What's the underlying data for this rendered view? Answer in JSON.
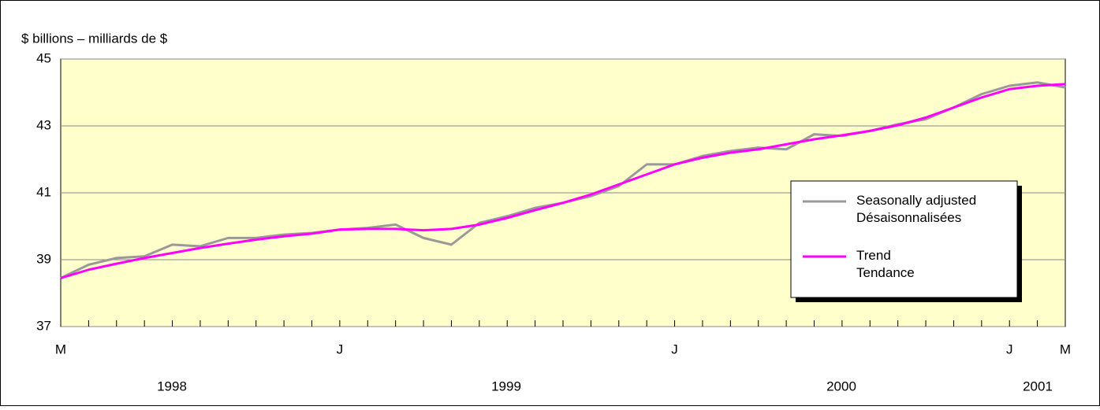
{
  "chart_data": {
    "type": "line",
    "y_label": "$ billions – milliards de $",
    "categories": [
      "M",
      null,
      null,
      null,
      null,
      null,
      null,
      null,
      null,
      null,
      "J",
      null,
      null,
      null,
      null,
      null,
      null,
      null,
      null,
      null,
      null,
      null,
      "J",
      null,
      null,
      null,
      null,
      null,
      null,
      null,
      null,
      null,
      null,
      null,
      "J",
      null,
      "M"
    ],
    "years": [
      "1998",
      "1999",
      "2000",
      "2001"
    ],
    "series": [
      {
        "name": "Seasonally adjusted\nDésaisonnalisées",
        "color": "#999999",
        "values": [
          38.45,
          38.85,
          39.05,
          39.1,
          39.45,
          39.4,
          39.65,
          39.65,
          39.75,
          39.8,
          39.9,
          39.95,
          40.05,
          39.65,
          39.45,
          40.1,
          40.3,
          40.55,
          40.7,
          40.9,
          41.2,
          41.85,
          41.85,
          42.1,
          42.25,
          42.35,
          42.3,
          42.75,
          42.7,
          42.85,
          43.05,
          43.2,
          43.55,
          43.95,
          44.2,
          44.3,
          44.15
        ]
      },
      {
        "name": "Trend\nTendance",
        "color": "#ff00ff",
        "values": [
          38.45,
          38.7,
          38.88,
          39.05,
          39.2,
          39.35,
          39.48,
          39.6,
          39.7,
          39.78,
          39.9,
          39.92,
          39.92,
          39.88,
          39.92,
          40.05,
          40.25,
          40.48,
          40.7,
          40.95,
          41.25,
          41.55,
          41.85,
          42.05,
          42.2,
          42.3,
          42.45,
          42.6,
          42.72,
          42.85,
          43.02,
          43.25,
          43.55,
          43.85,
          44.1,
          44.2,
          44.25
        ]
      }
    ],
    "ylim": [
      37,
      45
    ],
    "yticks": [
      37,
      39,
      41,
      43,
      45
    ],
    "grid": true,
    "plot_background": "#ffffcc",
    "legend": "right"
  }
}
